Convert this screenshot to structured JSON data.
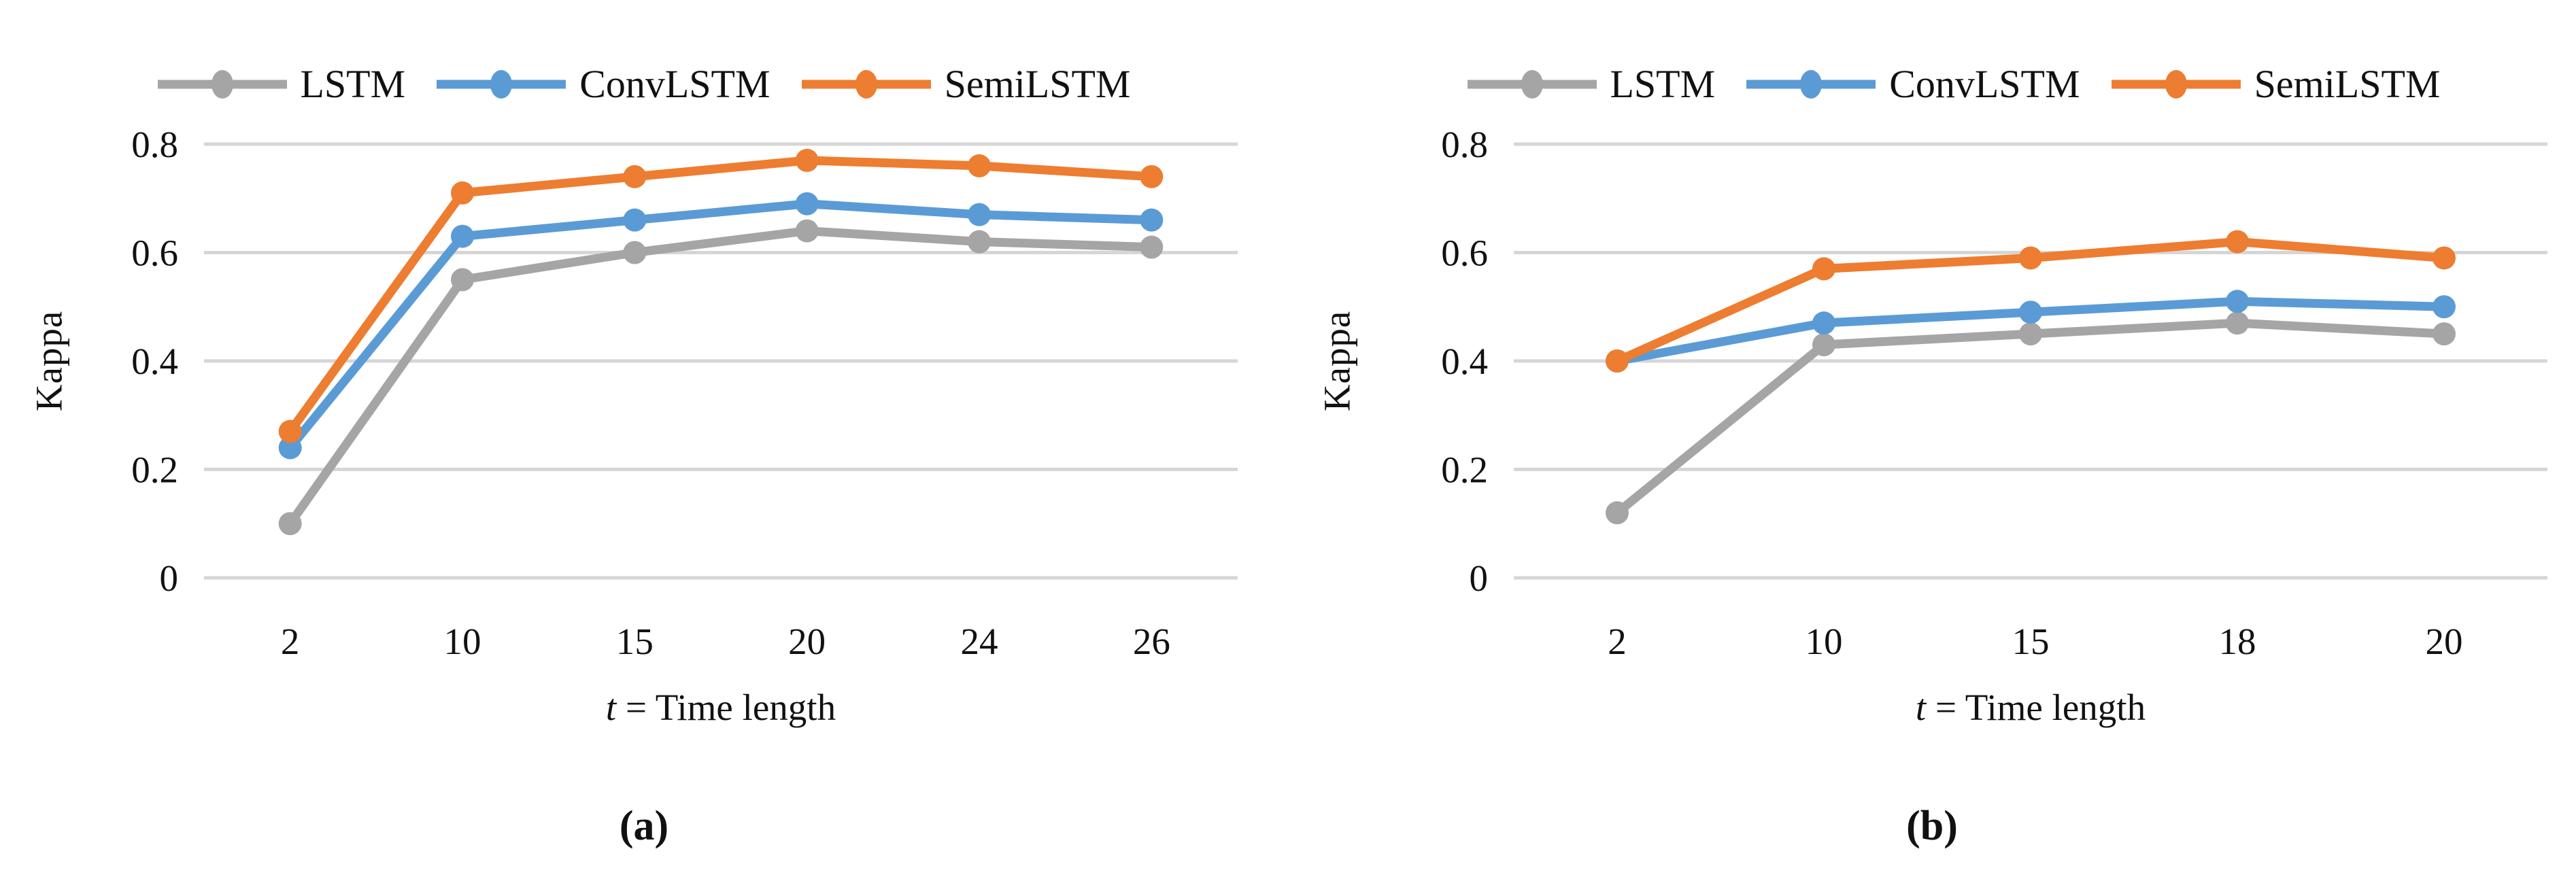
{
  "figure": {
    "background": "#ffffff",
    "grid_color": "#d6d6d6",
    "text_color": "#111111"
  },
  "chart_data": [
    {
      "type": "line",
      "panel": "a",
      "caption": "(a)",
      "xlabel": "t = Time length",
      "ylabel": "Kappa",
      "categories": [
        "2",
        "10",
        "15",
        "20",
        "24",
        "26"
      ],
      "y_ticks": [
        "0",
        "0.2",
        "0.4",
        "0.6",
        "0.8"
      ],
      "ylim": [
        0,
        0.8
      ],
      "grid": "horizontal",
      "legend_position": "top",
      "series": [
        {
          "name": "LSTM",
          "color": "#a5a5a5",
          "values": [
            0.1,
            0.55,
            0.6,
            0.64,
            0.62,
            0.61
          ]
        },
        {
          "name": "ConvLSTM",
          "color": "#5b9bd5",
          "values": [
            0.24,
            0.63,
            0.66,
            0.69,
            0.67,
            0.66
          ]
        },
        {
          "name": "SemiLSTM",
          "color": "#ed7d31",
          "values": [
            0.27,
            0.71,
            0.74,
            0.77,
            0.76,
            0.74
          ]
        }
      ]
    },
    {
      "type": "line",
      "panel": "b",
      "caption": "(b)",
      "xlabel": "t = Time length",
      "ylabel": "Kappa",
      "categories": [
        "2",
        "10",
        "15",
        "18",
        "20"
      ],
      "y_ticks": [
        "0",
        "0.2",
        "0.4",
        "0.6",
        "0.8"
      ],
      "ylim": [
        0,
        0.8
      ],
      "grid": "horizontal",
      "legend_position": "top",
      "series": [
        {
          "name": "LSTM",
          "color": "#a5a5a5",
          "values": [
            0.12,
            0.43,
            0.45,
            0.47,
            0.45
          ]
        },
        {
          "name": "ConvLSTM",
          "color": "#5b9bd5",
          "values": [
            0.4,
            0.47,
            0.49,
            0.51,
            0.5
          ]
        },
        {
          "name": "SemiLSTM",
          "color": "#ed7d31",
          "values": [
            0.4,
            0.57,
            0.59,
            0.62,
            0.59
          ]
        }
      ]
    }
  ]
}
